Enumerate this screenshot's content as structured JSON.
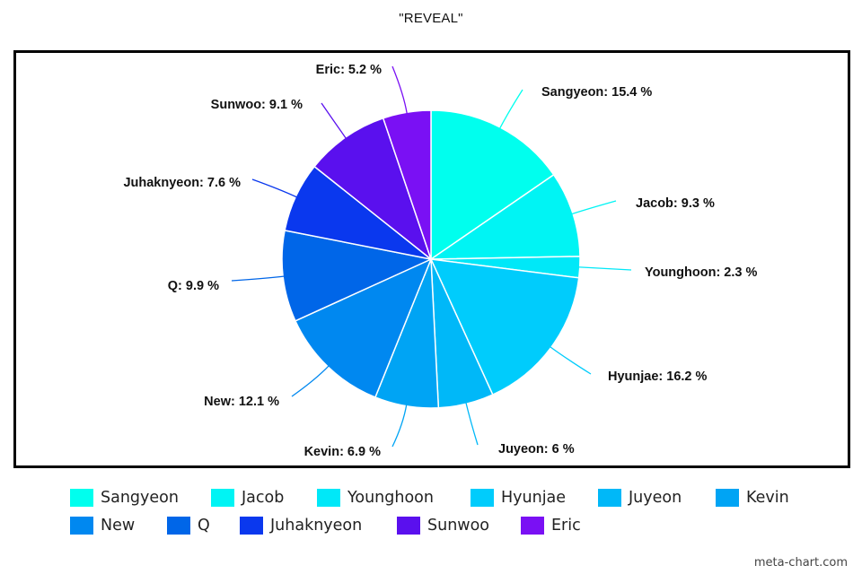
{
  "chart_data": {
    "type": "pie",
    "title": "\"REVEAL\"",
    "unit": "%",
    "slices": [
      {
        "label": "Sangyeon",
        "value": 15.4,
        "display": "15.4",
        "color": "#00ffee"
      },
      {
        "label": "Jacob",
        "value": 9.3,
        "display": "9.3",
        "color": "#00f4f4"
      },
      {
        "label": "Younghoon",
        "value": 2.3,
        "display": "2.3",
        "color": "#00e8f8"
      },
      {
        "label": "Hyunjae",
        "value": 16.2,
        "display": "16.2",
        "color": "#00ccfc"
      },
      {
        "label": "Juyeon",
        "value": 6.0,
        "display": "6",
        "color": "#00b8f8"
      },
      {
        "label": "Kevin",
        "value": 6.9,
        "display": "6.9",
        "color": "#00a4f4"
      },
      {
        "label": "New",
        "value": 12.1,
        "display": "12.1",
        "color": "#0088f0"
      },
      {
        "label": "Q",
        "value": 9.9,
        "display": "9.9",
        "color": "#0066e8"
      },
      {
        "label": "Juhaknyeon",
        "value": 7.6,
        "display": "7.6",
        "color": "#0a38ee"
      },
      {
        "label": "Sunwoo",
        "value": 9.1,
        "display": "9.1",
        "color": "#5a10ee"
      },
      {
        "label": "Eric",
        "value": 5.2,
        "display": "5.2",
        "color": "#7a10f4"
      }
    ],
    "legend_position": "bottom"
  },
  "watermark": "meta-chart.com"
}
